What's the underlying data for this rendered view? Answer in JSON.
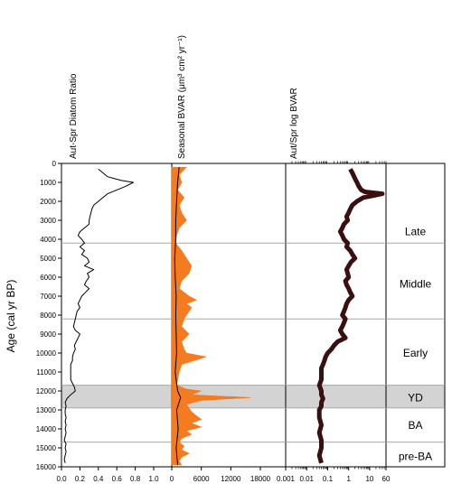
{
  "chart_data": {
    "type": "line",
    "age_axis": {
      "label": "Age (cal yr BP)",
      "ticks": [
        0,
        1000,
        2000,
        3000,
        4000,
        5000,
        6000,
        7000,
        8000,
        9000,
        10000,
        11000,
        12000,
        13000,
        14000,
        15000,
        16000
      ],
      "range": [
        0,
        16000
      ],
      "reversed": true
    },
    "zones": {
      "boundaries": [
        4200,
        8200,
        11700,
        12900,
        14700
      ],
      "shaded_interval": [
        11700,
        12900
      ],
      "labels": [
        {
          "text": "Late",
          "age": 3600
        },
        {
          "text": "Middle",
          "age": 6350
        },
        {
          "text": "Early",
          "age": 10000
        },
        {
          "text": "YD",
          "age": 12350
        },
        {
          "text": "BA",
          "age": 13800
        },
        {
          "text": "pre-BA",
          "age": 15450
        }
      ]
    },
    "panels": [
      {
        "id": "ratio",
        "xlabel": "Aut-Spr Diatom Ratio",
        "xlim": [
          0,
          1.0
        ],
        "ticks": [
          "0.0",
          "0.2",
          "0.4",
          "0.6",
          "0.8",
          "1.0"
        ],
        "tick_values": [
          0,
          0.2,
          0.4,
          0.6,
          0.8,
          1.0
        ],
        "series": [
          {
            "color": "#000000",
            "age": [
              300,
              500,
              700,
              900,
              1000,
              1200,
              1400,
              1600,
              1800,
              2000,
              2200,
              2400,
              2600,
              2800,
              3000,
              3200,
              3400,
              3600,
              3800,
              4000,
              4200,
              4400,
              4600,
              4800,
              5000,
              5200,
              5400,
              5600,
              5800,
              6000,
              6200,
              6400,
              6600,
              6800,
              7000,
              7200,
              7400,
              7600,
              7800,
              8000,
              8200,
              8400,
              8600,
              8800,
              9000,
              9200,
              9400,
              9600,
              9800,
              10000,
              10200,
              10400,
              10600,
              10800,
              11000,
              11200,
              11400,
              11600,
              11800,
              12000,
              12200,
              12400,
              12600,
              12800,
              13000,
              13200,
              13400,
              13600,
              13800,
              14000,
              14200,
              14400,
              14600,
              14800,
              15000,
              15200,
              15400,
              15600,
              15800
            ],
            "values": [
              0.4,
              0.45,
              0.5,
              0.65,
              0.78,
              0.7,
              0.6,
              0.5,
              0.45,
              0.4,
              0.35,
              0.33,
              0.32,
              0.31,
              0.3,
              0.3,
              0.25,
              0.2,
              0.18,
              0.22,
              0.25,
              0.2,
              0.25,
              0.22,
              0.28,
              0.3,
              0.25,
              0.35,
              0.28,
              0.3,
              0.27,
              0.25,
              0.3,
              0.26,
              0.22,
              0.2,
              0.18,
              0.2,
              0.17,
              0.16,
              0.15,
              0.14,
              0.13,
              0.15,
              0.2,
              0.18,
              0.16,
              0.14,
              0.15,
              0.13,
              0.12,
              0.12,
              0.1,
              0.1,
              0.1,
              0.1,
              0.1,
              0.12,
              0.14,
              0.15,
              0.1,
              0.06,
              0.04,
              0.05,
              0.04,
              0.04,
              0.05,
              0.04,
              0.05,
              0.04,
              0.05,
              0.04,
              0.03,
              0.05,
              0.04,
              0.05,
              0.04,
              0.03,
              0.04
            ]
          }
        ]
      },
      {
        "id": "bvar",
        "xlabel": "Seasonal BVAR (μm³ cm² yr⁻¹)",
        "xlim": [
          0,
          18000
        ],
        "ticks": [
          "0",
          "6000",
          "12000",
          "18000"
        ],
        "tick_values": [
          0,
          6000,
          12000,
          18000
        ],
        "series": [
          {
            "name": "",
            "color": "#f47b20",
            "fill": true,
            "age": [
              200,
              600,
              1000,
              1400,
              1800,
              2200,
              2600,
              3000,
              3400,
              3800,
              4200,
              4600,
              5000,
              5400,
              5800,
              6200,
              6600,
              7000,
              7200,
              7400,
              7600,
              7800,
              8000,
              8200,
              8600,
              9000,
              9400,
              9800,
              10000,
              10200,
              10600,
              11000,
              11400,
              11700,
              11900,
              12000,
              12200,
              12350,
              12500,
              12700,
              12900,
              13100,
              13300,
              13500,
              13700,
              13900,
              14100,
              14300,
              14500,
              14700,
              14900,
              15100,
              15300,
              15500,
              15700,
              15900
            ],
            "values": [
              3000,
              1500,
              2000,
              1200,
              2500,
              1500,
              2000,
              3000,
              1500,
              1000,
              800,
              2000,
              3000,
              4000,
              3500,
              2000,
              1500,
              3500,
              5000,
              3000,
              4000,
              3500,
              3000,
              2500,
              2000,
              3500,
              2000,
              2500,
              3000,
              7000,
              2000,
              1500,
              1200,
              1000,
              3000,
              6000,
              4000,
              16000,
              6000,
              3000,
              3500,
              4000,
              5000,
              6000,
              4000,
              6000,
              3000,
              4000,
              2000,
              1500,
              2500,
              2000,
              3500,
              2000,
              1500,
              2000
            ]
          },
          {
            "name": "",
            "color": "#000000",
            "fill": false,
            "age": [
              200,
              1000,
              2000,
              3000,
              4000,
              5000,
              6000,
              7000,
              8000,
              9000,
              10000,
              11000,
              12000,
              12350,
              13000,
              14000,
              15000,
              15900
            ],
            "values": [
              1500,
              1200,
              1000,
              800,
              800,
              600,
              700,
              900,
              800,
              900,
              1000,
              700,
              1200,
              1800,
              1000,
              1300,
              900,
              1200
            ]
          }
        ]
      },
      {
        "id": "log",
        "xlabel": "Aut/Spr log BVAR",
        "xscale": "log",
        "xlim": [
          0.001,
          60
        ],
        "ticks": [
          "0.001",
          "0.01",
          "0.1",
          "1",
          "10",
          "60"
        ],
        "tick_values": [
          0.001,
          0.01,
          0.1,
          1,
          10,
          60
        ],
        "series": [
          {
            "color": "#3a0f0f",
            "age": [
              300,
              500,
              800,
              1000,
              1200,
              1400,
              1500,
              1600,
              1700,
              1800,
              2000,
              2200,
              2400,
              2600,
              2800,
              3000,
              3200,
              3400,
              3600,
              3800,
              4000,
              4200,
              4400,
              4600,
              4800,
              5000,
              5200,
              5400,
              5600,
              5800,
              6000,
              6200,
              6400,
              6600,
              6800,
              7000,
              7200,
              7400,
              7600,
              7800,
              8000,
              8200,
              8400,
              8600,
              8800,
              9000,
              9200,
              9400,
              9600,
              9800,
              10000,
              10200,
              10400,
              10600,
              10800,
              11000,
              11400,
              11700,
              12000,
              12200,
              12400,
              12600,
              12800,
              13000,
              13400,
              13800,
              14200,
              14600,
              15000,
              15400,
              15800
            ],
            "values": [
              1.2,
              1.5,
              2,
              2.5,
              3,
              4,
              6,
              40,
              15,
              5,
              2.5,
              1.5,
              1.2,
              1,
              0.8,
              0.9,
              0.6,
              0.5,
              0.4,
              0.5,
              0.6,
              0.9,
              0.8,
              1.2,
              1.5,
              2,
              1.3,
              1,
              0.8,
              0.9,
              1,
              0.7,
              0.8,
              1,
              1.2,
              1.5,
              1,
              0.8,
              0.7,
              0.6,
              0.5,
              0.7,
              0.6,
              0.5,
              0.4,
              0.5,
              0.7,
              0.3,
              0.2,
              0.15,
              0.1,
              0.08,
              0.07,
              0.06,
              0.05,
              0.05,
              0.05,
              0.04,
              0.05,
              0.05,
              0.06,
              0.05,
              0.05,
              0.04,
              0.04,
              0.05,
              0.04,
              0.05,
              0.05,
              0.04,
              0.05
            ]
          }
        ]
      }
    ]
  }
}
